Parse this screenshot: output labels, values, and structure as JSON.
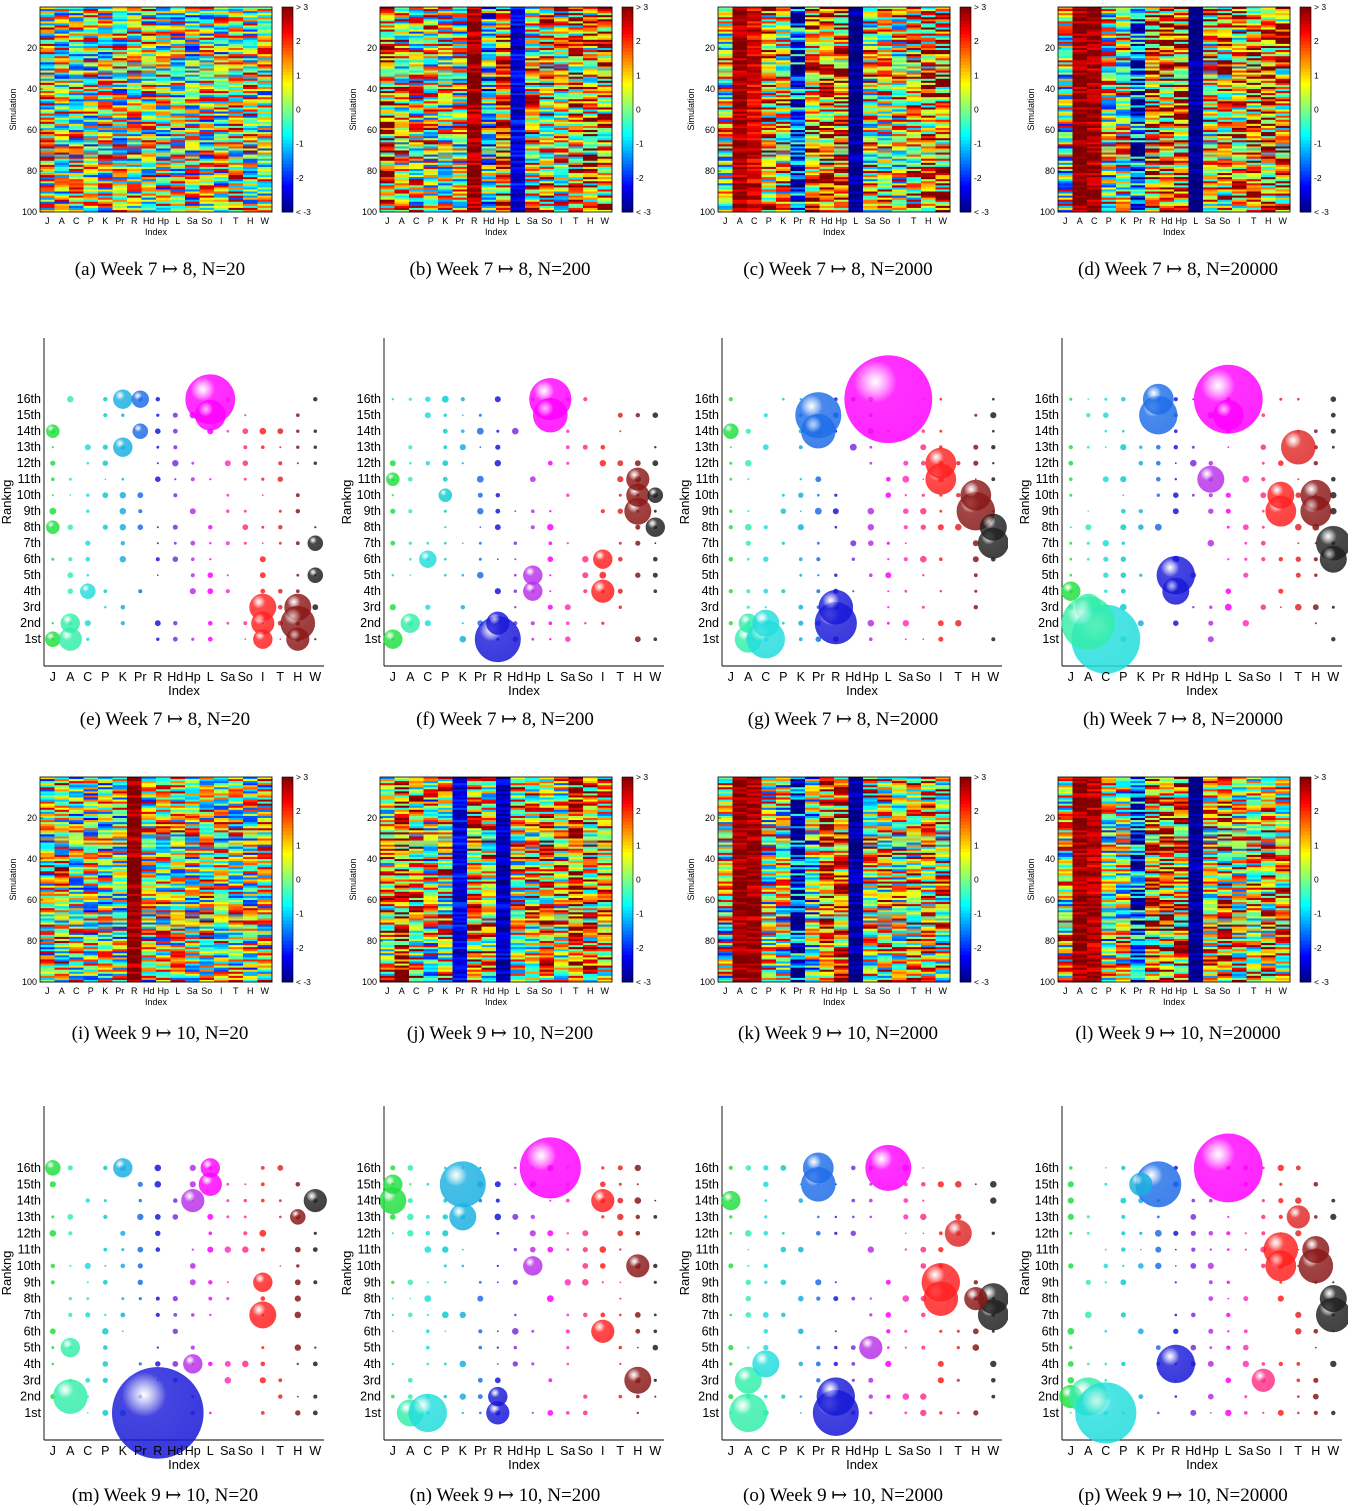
{
  "figure": {
    "colorbar_ticks": [
      "> 3",
      "2",
      "1",
      "0",
      "-1",
      "-2",
      "< -3"
    ],
    "index_labels": [
      "J",
      "A",
      "C",
      "P",
      "K",
      "Pr",
      "R",
      "Hd",
      "Hp",
      "L",
      "Sa",
      "So",
      "I",
      "T",
      "H",
      "W"
    ],
    "rank_labels": [
      "1st",
      "2nd",
      "3rd",
      "4th",
      "5th",
      "6th",
      "7th",
      "8th",
      "9th",
      "10th",
      "11th",
      "12th",
      "13th",
      "14th",
      "15th",
      "16th"
    ],
    "sim_ticks": [
      "20",
      "40",
      "60",
      "80",
      "100"
    ],
    "series_colors": [
      "#20e040",
      "#33eeaa",
      "#22dddd",
      "#11cccc",
      "#1ab0e0",
      "#1e6de8",
      "#1818d8",
      "#7a2ee0",
      "#b830e8",
      "#ff00ff",
      "#ff30c0",
      "#ff3088",
      "#ff2020",
      "#e02828",
      "#8a1818",
      "#202020"
    ]
  },
  "chart_data": [
    {
      "id": "a",
      "type": "heatmap",
      "caption": "(a)  Week 7 ↦ 8, N=20",
      "ylabel": "Simulation",
      "xlabel": "Index",
      "row": 1,
      "col": 0,
      "n_rows": 100,
      "zlim": [
        -3,
        3
      ],
      "column_means": [
        0.4,
        0.3,
        0.3,
        0.3,
        0.3,
        0.3,
        0.4,
        0.4,
        0.2,
        0.1,
        0.1,
        0.2,
        0.3,
        0.5,
        0.4,
        0.3
      ]
    },
    {
      "id": "b",
      "type": "heatmap",
      "caption": "(b)  Week 7 ↦ 8, N=200",
      "ylabel": "Simulation",
      "xlabel": "Index",
      "row": 1,
      "col": 1,
      "n_rows": 100,
      "zlim": [
        -3,
        3
      ],
      "column_means": [
        1.4,
        0.6,
        0.5,
        0.5,
        0.3,
        0.3,
        2.8,
        -0.7,
        1.6,
        -2.4,
        0.7,
        1.0,
        0.6,
        1.2,
        1.0,
        1.3
      ]
    },
    {
      "id": "c",
      "type": "heatmap",
      "caption": "(c)  Week 7 ↦ 8, N=2000",
      "ylabel": "Simulation",
      "xlabel": "Index",
      "row": 1,
      "col": 2,
      "n_rows": 100,
      "zlim": [
        -3,
        3
      ],
      "column_means": [
        0.5,
        2.8,
        2.4,
        1.0,
        0.8,
        -2.3,
        1.5,
        1.6,
        1.5,
        -3.0,
        0.7,
        0.7,
        0.6,
        1.0,
        1.2,
        1.3
      ]
    },
    {
      "id": "d",
      "type": "heatmap",
      "caption": "(d)  Week 7 ↦ 8, N=20000",
      "ylabel": "Simulation",
      "xlabel": "Index",
      "row": 1,
      "col": 3,
      "n_rows": 100,
      "zlim": [
        -3,
        3
      ],
      "column_means": [
        0.2,
        2.9,
        2.8,
        0.3,
        0.6,
        -2.0,
        1.4,
        1.5,
        1.6,
        -3.0,
        0.7,
        1.0,
        0.8,
        1.3,
        1.2,
        1.0
      ]
    },
    {
      "id": "e",
      "type": "scatter",
      "caption": "(e)  Week 7 ↦ 8, N=20",
      "ylabel": "Rankng",
      "xlabel": "Index",
      "row": 0,
      "col": 0,
      "bubbles": [
        [
          0,
          1,
          4
        ],
        [
          0,
          8,
          3.5
        ],
        [
          0,
          14,
          3.5
        ],
        [
          1,
          1,
          6
        ],
        [
          1,
          2,
          5
        ],
        [
          2,
          4,
          4
        ],
        [
          4,
          16,
          5
        ],
        [
          4,
          13,
          5
        ],
        [
          5,
          16,
          4.5
        ],
        [
          5,
          14,
          4
        ],
        [
          9,
          16,
          13
        ],
        [
          9,
          15,
          8
        ],
        [
          12,
          3,
          7
        ],
        [
          12,
          2,
          6
        ],
        [
          12,
          1,
          5
        ],
        [
          14,
          3,
          7
        ],
        [
          14,
          2,
          9
        ],
        [
          14,
          1,
          6
        ],
        [
          15,
          7,
          4
        ],
        [
          15,
          5,
          4
        ]
      ]
    },
    {
      "id": "f",
      "type": "scatter",
      "caption": "(f)  Week 7 ↦ 8, N=200",
      "ylabel": "Rankng",
      "xlabel": "Index",
      "row": 0,
      "col": 1,
      "bubbles": [
        [
          0,
          1,
          5
        ],
        [
          0,
          11,
          3.5
        ],
        [
          1,
          2,
          5
        ],
        [
          2,
          6,
          4.5
        ],
        [
          3,
          10,
          3.5
        ],
        [
          6,
          1,
          12
        ],
        [
          6,
          2,
          6
        ],
        [
          8,
          4,
          5
        ],
        [
          8,
          5,
          5
        ],
        [
          9,
          16,
          11
        ],
        [
          9,
          15,
          9
        ],
        [
          12,
          4,
          6
        ],
        [
          12,
          6,
          5
        ],
        [
          14,
          9,
          7
        ],
        [
          14,
          10,
          6
        ],
        [
          14,
          11,
          6
        ],
        [
          15,
          8,
          5
        ],
        [
          15,
          10,
          4
        ]
      ]
    },
    {
      "id": "g",
      "type": "scatter",
      "caption": "(g)  Week 7 ↦ 8, N=2000",
      "ylabel": "Rankng",
      "xlabel": "Index",
      "row": 0,
      "col": 2,
      "bubbles": [
        [
          0,
          14,
          4
        ],
        [
          1,
          1,
          7
        ],
        [
          1,
          2,
          5
        ],
        [
          2,
          1,
          10
        ],
        [
          2,
          2,
          7
        ],
        [
          5,
          15,
          12
        ],
        [
          5,
          14,
          9
        ],
        [
          6,
          2,
          11
        ],
        [
          6,
          3,
          9
        ],
        [
          9,
          16,
          23
        ],
        [
          12,
          11,
          8
        ],
        [
          12,
          12,
          8
        ],
        [
          14,
          9,
          10
        ],
        [
          14,
          10,
          8
        ],
        [
          15,
          7,
          8
        ],
        [
          15,
          8,
          7
        ]
      ]
    },
    {
      "id": "h",
      "type": "scatter",
      "caption": "(h)  Week 7 ↦ 8, N=20000",
      "ylabel": "Rankng",
      "xlabel": "Index",
      "row": 0,
      "col": 3,
      "bubbles": [
        [
          0,
          4,
          5
        ],
        [
          1,
          3,
          7
        ],
        [
          2,
          1,
          18
        ],
        [
          1,
          2,
          14
        ],
        [
          5,
          15,
          10
        ],
        [
          5,
          16,
          8
        ],
        [
          6,
          5,
          10
        ],
        [
          6,
          4,
          7
        ],
        [
          9,
          16,
          18
        ],
        [
          9,
          15,
          8
        ],
        [
          8,
          11,
          7
        ],
        [
          12,
          9,
          8
        ],
        [
          12,
          10,
          7
        ],
        [
          13,
          13,
          9
        ],
        [
          14,
          10,
          8
        ],
        [
          14,
          9,
          8
        ],
        [
          15,
          7,
          9
        ],
        [
          15,
          6,
          7
        ]
      ]
    },
    {
      "id": "i",
      "type": "heatmap",
      "caption": "(i)  Week 9 ↦ 10, N=20",
      "ylabel": "Simulation",
      "xlabel": "Index",
      "row": 3,
      "col": 0,
      "n_rows": 100,
      "zlim": [
        -3,
        3
      ],
      "column_means": [
        0.3,
        0.6,
        0.2,
        0.1,
        0.2,
        0.2,
        2.9,
        0.3,
        0.5,
        0.5,
        0.4,
        0.6,
        0.3,
        0.4,
        0.2,
        0.4
      ]
    },
    {
      "id": "j",
      "type": "heatmap",
      "caption": "(j)  Week 9 ↦ 10, N=200",
      "ylabel": "Simulation",
      "xlabel": "Index",
      "row": 3,
      "col": 1,
      "n_rows": 100,
      "zlim": [
        -3,
        3
      ],
      "column_means": [
        0.8,
        1.8,
        0.9,
        0.2,
        0.6,
        -2.4,
        1.3,
        0.7,
        -2.6,
        0.6,
        0.7,
        1.2,
        0.6,
        2.0,
        1.0,
        0.9
      ]
    },
    {
      "id": "k",
      "type": "heatmap",
      "caption": "(k)  Week 9 ↦ 10, N=2000",
      "ylabel": "Simulation",
      "xlabel": "Index",
      "row": 3,
      "col": 2,
      "n_rows": 100,
      "zlim": [
        -3,
        3
      ],
      "column_means": [
        0.3,
        2.9,
        2.8,
        0.3,
        0.2,
        -2.3,
        -0.2,
        1.7,
        1.6,
        -2.9,
        0.6,
        0.7,
        0.5,
        0.8,
        0.9,
        0.7
      ]
    },
    {
      "id": "l",
      "type": "heatmap",
      "caption": "(l)  Week 9 ↦ 10, N=20000",
      "ylabel": "Simulation",
      "xlabel": "Index",
      "row": 3,
      "col": 3,
      "n_rows": 100,
      "zlim": [
        -3,
        3
      ],
      "column_means": [
        0.5,
        2.9,
        2.7,
        0.3,
        0.4,
        -2.2,
        1.3,
        1.3,
        1.4,
        -3.0,
        0.6,
        0.9,
        0.7,
        0.8,
        0.8,
        0.7
      ]
    },
    {
      "id": "m",
      "type": "scatter",
      "caption": "(m)  Week 9 ↦ 10, N=20",
      "ylabel": "Rankng",
      "xlabel": "Index",
      "row": 2,
      "col": 0,
      "bubbles": [
        [
          0,
          16,
          4
        ],
        [
          1,
          2,
          9
        ],
        [
          1,
          5,
          5
        ],
        [
          4,
          16,
          5
        ],
        [
          6,
          1,
          24
        ],
        [
          8,
          4,
          5
        ],
        [
          8,
          14,
          6
        ],
        [
          9,
          15,
          6
        ],
        [
          9,
          16,
          5
        ],
        [
          12,
          7,
          7
        ],
        [
          12,
          9,
          5
        ],
        [
          15,
          14,
          6
        ],
        [
          14,
          13,
          4
        ]
      ]
    },
    {
      "id": "n",
      "type": "scatter",
      "caption": "(n)  Week 9 ↦ 10, N=200",
      "ylabel": "Rankng",
      "xlabel": "Index",
      "row": 2,
      "col": 1,
      "bubbles": [
        [
          0,
          14,
          7
        ],
        [
          0,
          15,
          5
        ],
        [
          1,
          1,
          7
        ],
        [
          2,
          1,
          10
        ],
        [
          4,
          15,
          12
        ],
        [
          4,
          13,
          7
        ],
        [
          6,
          1,
          6
        ],
        [
          6,
          2,
          5
        ],
        [
          9,
          16,
          16
        ],
        [
          8,
          10,
          5
        ],
        [
          12,
          6,
          6
        ],
        [
          12,
          14,
          6
        ],
        [
          14,
          3,
          7
        ],
        [
          14,
          10,
          6
        ]
      ]
    },
    {
      "id": "o",
      "type": "scatter",
      "caption": "(o)  Week 9 ↦ 10, N=2000",
      "ylabel": "Rankng",
      "xlabel": "Index",
      "row": 2,
      "col": 2,
      "bubbles": [
        [
          0,
          14,
          5
        ],
        [
          1,
          1,
          10
        ],
        [
          1,
          3,
          7
        ],
        [
          2,
          4,
          7
        ],
        [
          5,
          15,
          9
        ],
        [
          5,
          16,
          8
        ],
        [
          6,
          1,
          12
        ],
        [
          6,
          2,
          10
        ],
        [
          9,
          16,
          12
        ],
        [
          8,
          5,
          6
        ],
        [
          12,
          8,
          9
        ],
        [
          12,
          9,
          10
        ],
        [
          13,
          12,
          7
        ],
        [
          15,
          7,
          8
        ],
        [
          15,
          8,
          8
        ],
        [
          14,
          8,
          6
        ]
      ]
    },
    {
      "id": "p",
      "type": "scatter",
      "caption": "(p)  Week 9 ↦ 10, N=20000",
      "ylabel": "Rankng",
      "xlabel": "Index",
      "row": 2,
      "col": 3,
      "bubbles": [
        [
          0,
          2,
          6
        ],
        [
          1,
          2,
          10
        ],
        [
          2,
          1,
          16
        ],
        [
          5,
          15,
          12
        ],
        [
          4,
          15,
          6
        ],
        [
          6,
          4,
          10
        ],
        [
          9,
          16,
          18
        ],
        [
          11,
          3,
          6
        ],
        [
          12,
          11,
          9
        ],
        [
          12,
          10,
          8
        ],
        [
          14,
          10,
          9
        ],
        [
          14,
          11,
          7
        ],
        [
          15,
          7,
          9
        ],
        [
          15,
          8,
          7
        ],
        [
          13,
          13,
          6
        ]
      ]
    }
  ]
}
